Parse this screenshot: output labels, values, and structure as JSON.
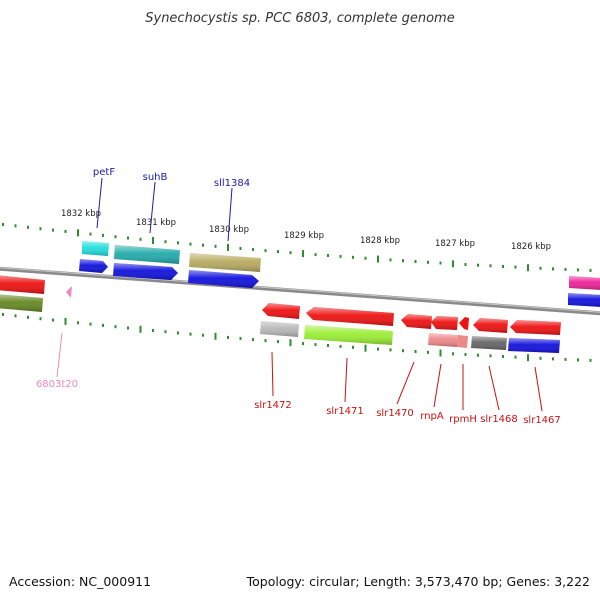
{
  "title": "Synechocystis sp. PCC 6803, complete genome",
  "footer": {
    "accession": "Accession: NC_000911",
    "summary": "Topology: circular; Length: 3,573,470 bp; Genes: 3,222"
  },
  "scale_labels": [
    "1832 kbp",
    "1831 kbp",
    "1830 kbp",
    "1829 kbp",
    "1828 kbp",
    "1827 kbp",
    "1826 kbp"
  ],
  "gene_labels": {
    "top": [
      "petF",
      "suhB",
      "sll1384"
    ],
    "top_color": "#1a1aa8",
    "bottom": [
      "slr1472",
      "slr1471",
      "slr1470",
      "rnpA",
      "rpmH",
      "slr1468",
      "slr1467"
    ],
    "bottom_color": "#cc1111",
    "trna": [
      "6803t20"
    ],
    "trna_color": "#ee88bb"
  },
  "colors": {
    "backbone": "#8a8a8a",
    "tick_green": "#2e8b2e",
    "gene_red": "#ee1111",
    "cds_blue": "#1111dd",
    "cyan": "#22dddd",
    "teal": "#22aaaa",
    "khaki": "#b8aa60",
    "gray": "#b8b8b8",
    "dark_gray": "#666666",
    "lime": "#99ee33",
    "salmon": "#ee8888",
    "olive": "#668822",
    "magenta": "#ee2299"
  }
}
